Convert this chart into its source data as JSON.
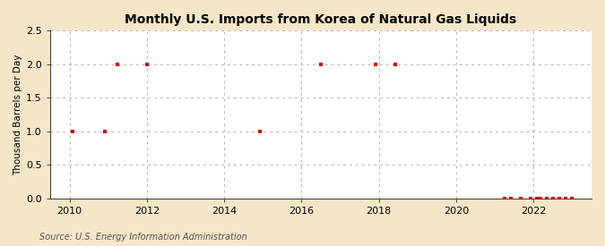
{
  "title": "Monthly U.S. Imports from Korea of Natural Gas Liquids",
  "ylabel": "Thousand Barrels per Day",
  "source": "Source: U.S. Energy Information Administration",
  "figure_bg_color": "#f5e6c8",
  "axes_bg_color": "#ffffff",
  "marker_color": "#cc0000",
  "grid_color": "#aaaaaa",
  "spine_color": "#444444",
  "ylim": [
    0.0,
    2.5
  ],
  "yticks": [
    0.0,
    0.5,
    1.0,
    1.5,
    2.0,
    2.5
  ],
  "xlim_start": 2009.5,
  "xlim_end": 2023.5,
  "xticks": [
    2010,
    2012,
    2014,
    2016,
    2018,
    2020,
    2022
  ],
  "data_points": [
    [
      2010.08,
      1.0
    ],
    [
      2010.92,
      1.0
    ],
    [
      2011.25,
      2.0
    ],
    [
      2012.0,
      2.0
    ],
    [
      2014.92,
      1.0
    ],
    [
      2016.5,
      2.0
    ],
    [
      2017.92,
      2.0
    ],
    [
      2018.42,
      2.0
    ],
    [
      2021.25,
      0.0
    ],
    [
      2021.42,
      0.0
    ],
    [
      2021.67,
      0.0
    ],
    [
      2021.92,
      0.0
    ],
    [
      2022.08,
      0.0
    ],
    [
      2022.17,
      0.0
    ],
    [
      2022.33,
      0.0
    ],
    [
      2022.5,
      0.0
    ],
    [
      2022.67,
      0.0
    ],
    [
      2022.83,
      0.0
    ],
    [
      2023.0,
      0.0
    ]
  ]
}
